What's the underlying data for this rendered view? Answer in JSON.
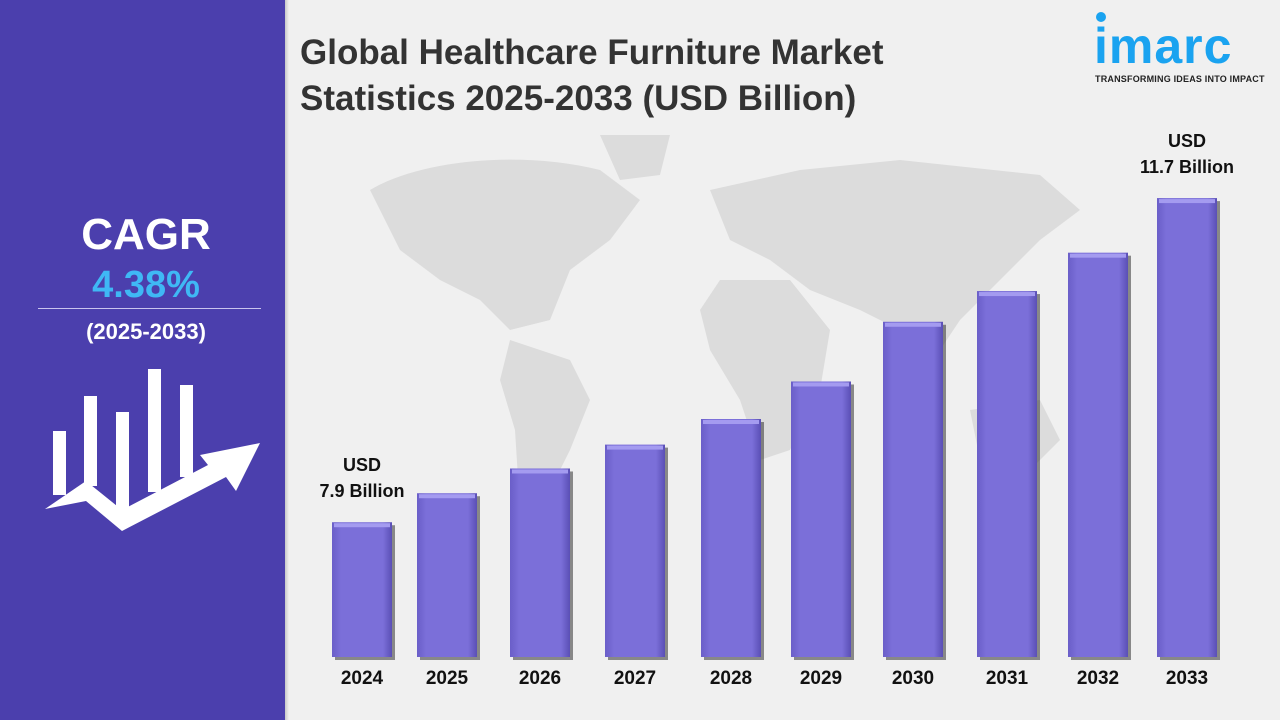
{
  "title_line1": "Global Healthcare Furniture Market",
  "title_line2": "Statistics 2025-2033 (USD Billion)",
  "logo": {
    "name": "imarc",
    "tagline": "TRANSFORMING IDEAS INTO IMPACT"
  },
  "cagr": {
    "label": "CAGR",
    "value": "4.38%",
    "period": "(2025-2033)"
  },
  "colors": {
    "panel": "#4b3fad",
    "bar": "#7b6fd9",
    "cagr_value": "#3fb8f5",
    "logo": "#1aa3f0"
  },
  "chart_data": {
    "type": "bar",
    "title": "Global Healthcare Furniture Market Statistics 2025-2033 (USD Billion)",
    "categories": [
      "2024",
      "2025",
      "2026",
      "2027",
      "2028",
      "2029",
      "2030",
      "2031",
      "2032",
      "2033"
    ],
    "values": [
      7.9,
      8.24,
      8.53,
      8.81,
      9.11,
      9.55,
      10.25,
      10.61,
      11.06,
      11.7
    ],
    "annotations": [
      {
        "category": "2024",
        "line1": "USD",
        "line2": "7.9 Billion"
      },
      {
        "category": "2033",
        "line1": "USD",
        "line2": "11.7 Billion"
      }
    ],
    "grid": false
  }
}
